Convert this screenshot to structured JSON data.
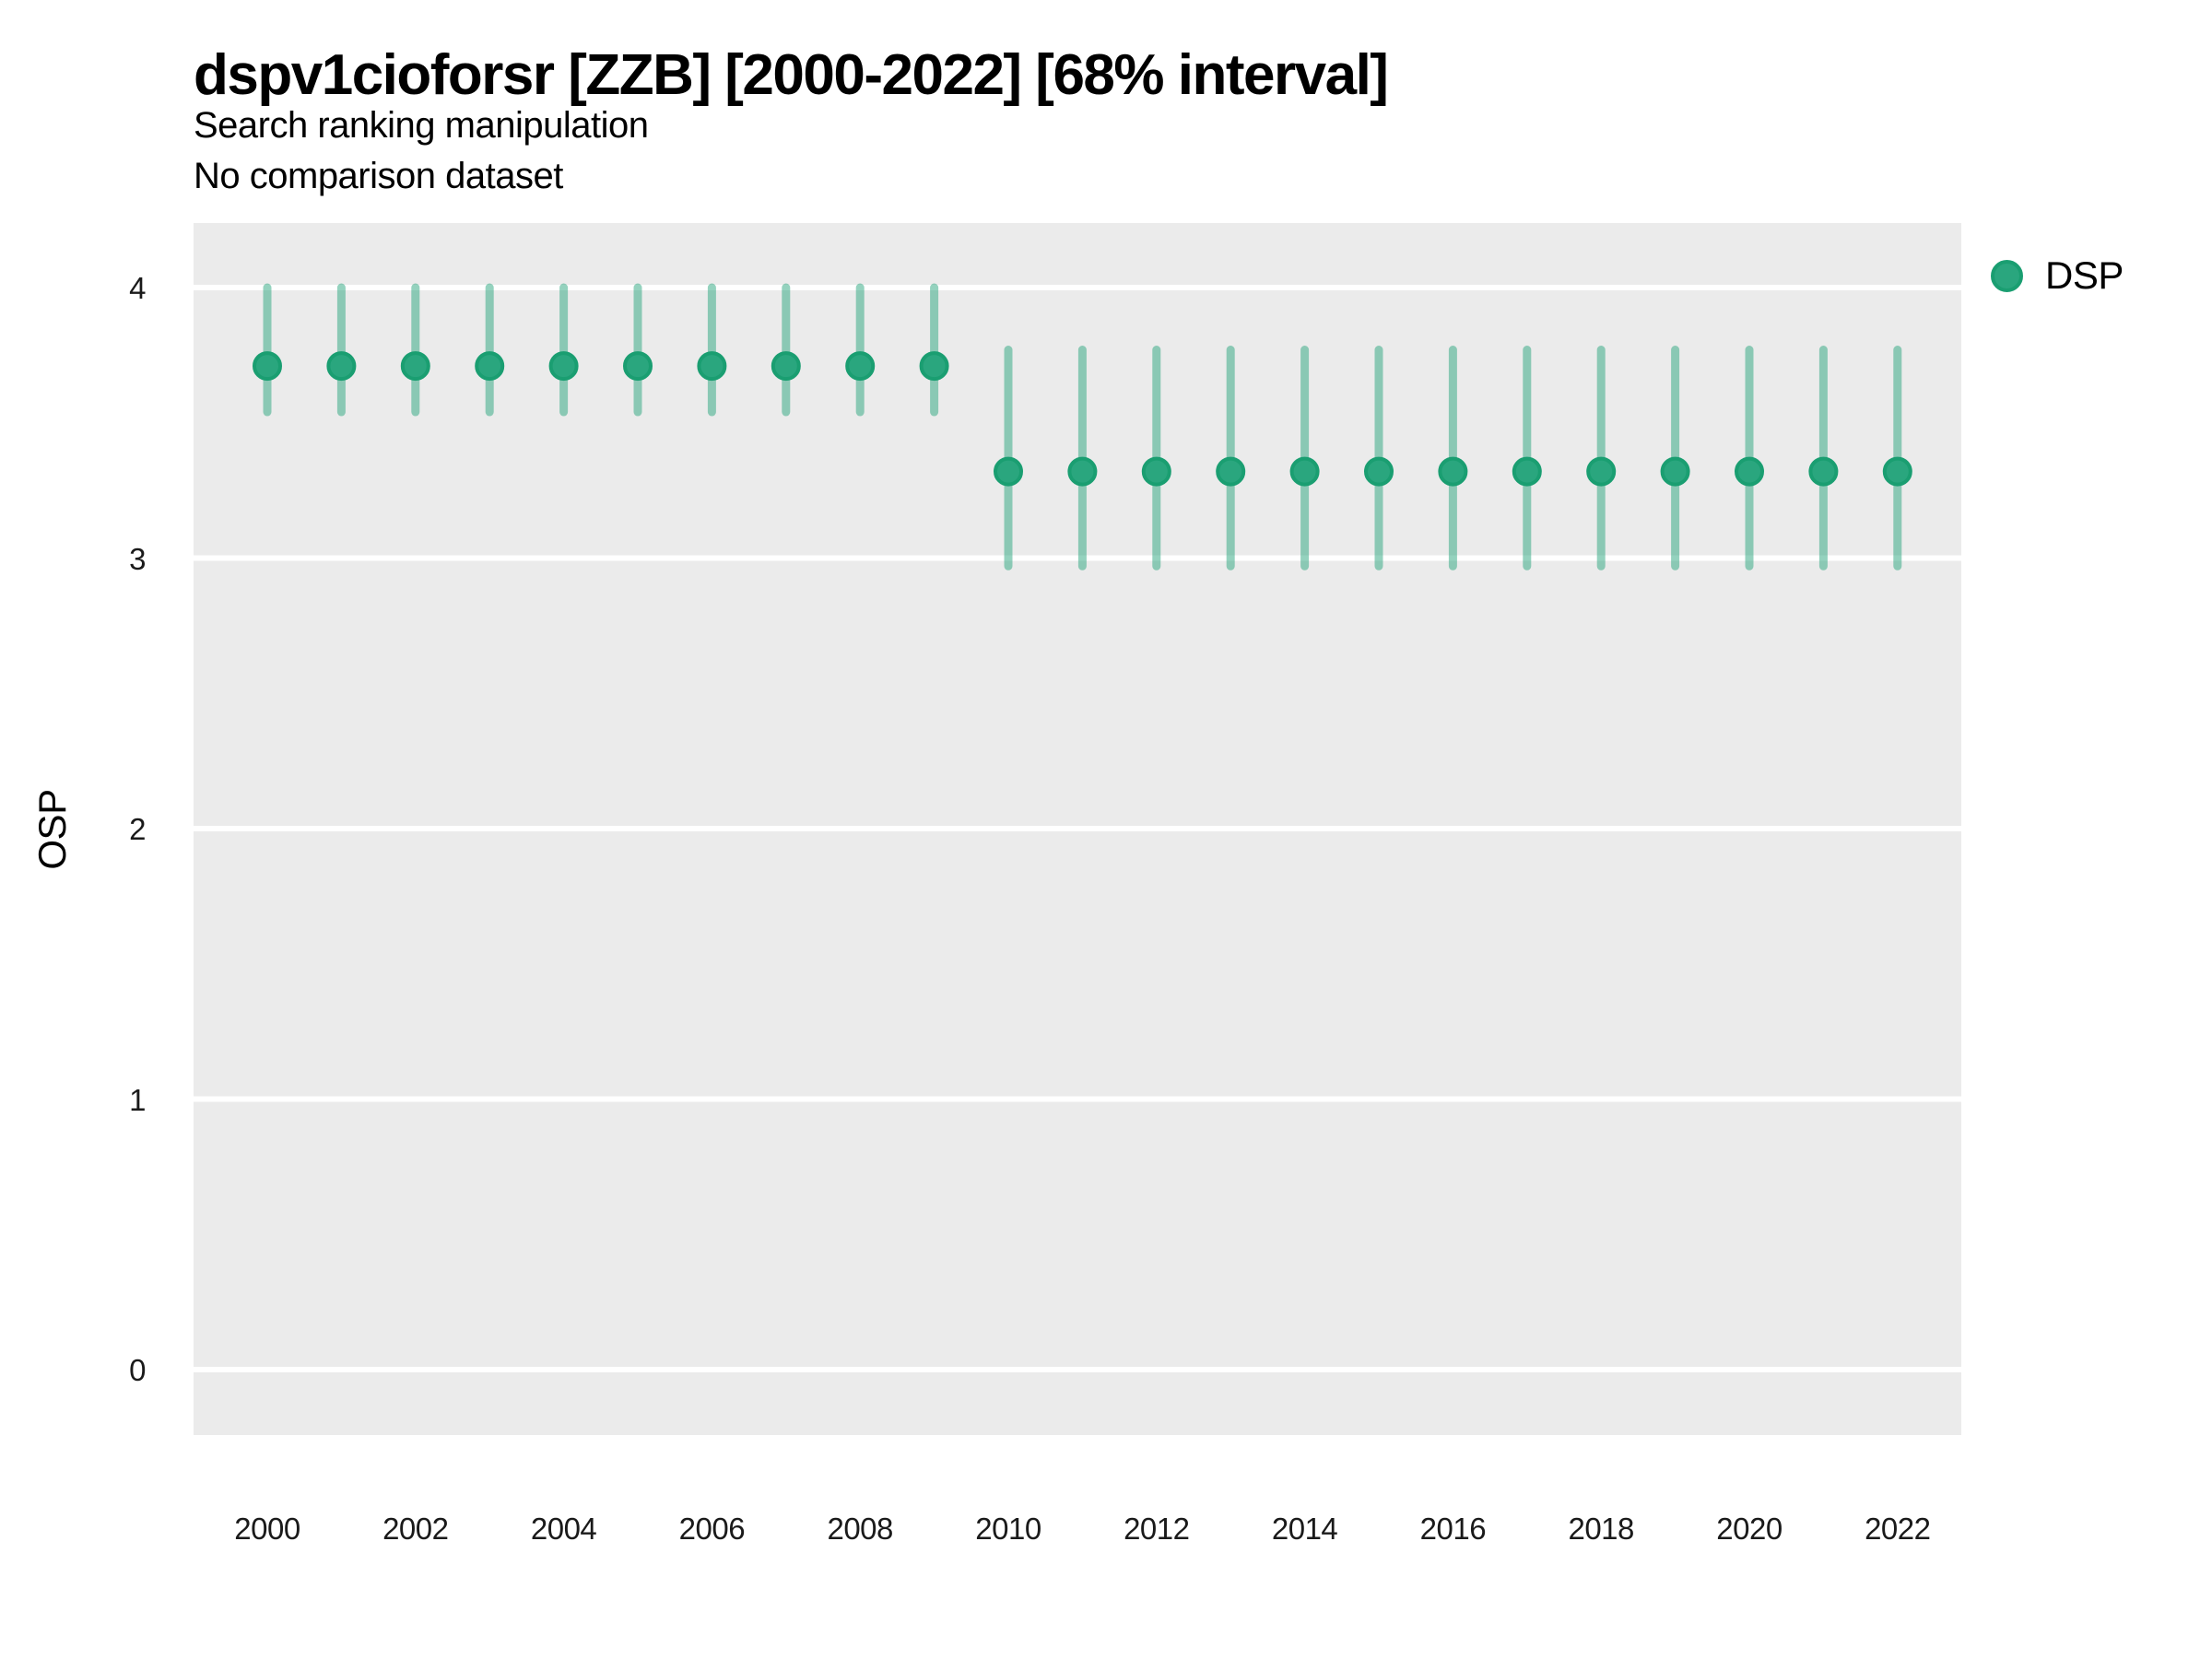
{
  "header": {
    "title": "dspv1cioforsr [ZZB] [2000-2022] [68% interval]",
    "subtitle1": "Search ranking manipulation",
    "subtitle2": "No comparison dataset"
  },
  "axes": {
    "y_label": "OSP"
  },
  "legend": {
    "position": "right",
    "items": [
      {
        "label": "DSP",
        "color": "#2AA67E"
      }
    ]
  },
  "chart_data": {
    "type": "pointrange",
    "title": "dspv1cioforsr [ZZB] [2000-2022] [68% interval]",
    "subtitle": "Search ranking manipulation",
    "note": "No comparison dataset",
    "interval_label": "68% interval",
    "xlabel": "",
    "ylabel": "OSP",
    "xlim": [
      2000,
      2022
    ],
    "ylim": [
      0,
      4
    ],
    "x_ticks": [
      2000,
      2002,
      2004,
      2006,
      2008,
      2010,
      2012,
      2014,
      2016,
      2018,
      2020,
      2022
    ],
    "y_ticks": [
      0,
      1,
      2,
      3,
      4
    ],
    "grid": "horizontal-major-only",
    "legend_position": "right",
    "x": [
      2000,
      2001,
      2002,
      2003,
      2004,
      2005,
      2006,
      2007,
      2008,
      2009,
      2010,
      2011,
      2012,
      2013,
      2014,
      2015,
      2016,
      2017,
      2018,
      2019,
      2020,
      2021,
      2022
    ],
    "series": [
      {
        "name": "DSP",
        "est": [
          3.71,
          3.71,
          3.71,
          3.71,
          3.71,
          3.71,
          3.71,
          3.71,
          3.71,
          3.71,
          3.32,
          3.32,
          3.32,
          3.32,
          3.32,
          3.32,
          3.32,
          3.32,
          3.32,
          3.32,
          3.32,
          3.32,
          3.32
        ],
        "lo": [
          3.54,
          3.54,
          3.54,
          3.54,
          3.54,
          3.54,
          3.54,
          3.54,
          3.54,
          3.54,
          2.97,
          2.97,
          2.97,
          2.97,
          2.97,
          2.97,
          2.97,
          2.97,
          2.97,
          2.97,
          2.97,
          2.97,
          2.97
        ],
        "hi": [
          4.0,
          4.0,
          4.0,
          4.0,
          4.0,
          4.0,
          4.0,
          4.0,
          4.0,
          4.0,
          3.77,
          3.77,
          3.77,
          3.77,
          3.77,
          3.77,
          3.77,
          3.77,
          3.77,
          3.77,
          3.77,
          3.77,
          3.77
        ]
      }
    ],
    "colors": {
      "point_fill": "#2AA67E",
      "point_stroke": "#1A9E71",
      "interval_line": "rgba(42,166,126,0.5)",
      "plot_bg": "#EBEBEB",
      "gridline": "#FFFFFF"
    }
  }
}
